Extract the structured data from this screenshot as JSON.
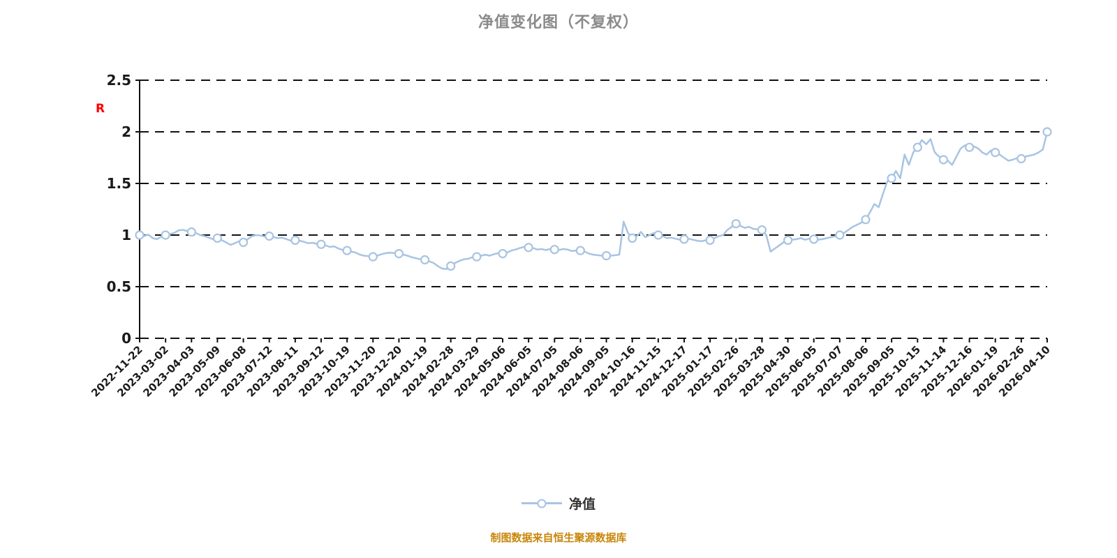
{
  "title": "净值变化图（不复权）",
  "watermark_r": "R",
  "legend": {
    "label": "净值"
  },
  "footer": {
    "source_note": "制图数据来自恒生聚源数据库"
  },
  "colors": {
    "line": "#a8c4e2",
    "marker_fill": "#ffffff",
    "grid": "#111111",
    "axis_text": "#1a1a1a",
    "title": "#8a8a8a",
    "footer": "#c8860a",
    "watermark": "#ff0000"
  },
  "chart_data": {
    "type": "line",
    "title": "净值变化图（不复权）",
    "xlabel": "",
    "ylabel": "",
    "series_name": "净值",
    "legend_position": "bottom-center",
    "grid": "dashed-horizontal",
    "ylim": [
      0,
      2.5
    ],
    "yticks": [
      0,
      0.5,
      1,
      1.5,
      2,
      2.5
    ],
    "x_tick_labels": [
      "2022-11-22",
      "2023-03-02",
      "2023-04-03",
      "2023-05-09",
      "2023-06-08",
      "2023-07-12",
      "2023-08-11",
      "2023-09-12",
      "2023-10-19",
      "2023-11-20",
      "2023-12-20",
      "2024-01-19",
      "2024-02-28",
      "2024-03-29",
      "2024-05-06",
      "2024-06-05",
      "2024-07-05",
      "2024-08-06",
      "2024-09-05",
      "2024-10-16",
      "2024-11-15",
      "2024-12-17",
      "2025-01-17",
      "2025-02-26",
      "2025-03-28",
      "2025-04-30",
      "2025-06-05",
      "2025-07-07",
      "2025-08-06",
      "2025-09-05",
      "2025-10-15",
      "2025-11-14",
      "2025-12-16",
      "2026-01-19",
      "2026-02-26",
      "2026-04-10"
    ],
    "points_per_tick": 6,
    "marker_every": 6,
    "values": [
      1.0,
      0.99,
      1.005,
      0.97,
      0.96,
      0.985,
      1.0,
      1.01,
      1.02,
      1.045,
      1.05,
      1.04,
      1.03,
      1.02,
      1.0,
      0.99,
      0.975,
      0.96,
      0.97,
      0.95,
      0.93,
      0.905,
      0.92,
      0.94,
      0.93,
      0.96,
      0.99,
      1.0,
      0.995,
      0.985,
      0.99,
      0.98,
      0.97,
      0.975,
      0.96,
      0.945,
      0.95,
      0.945,
      0.935,
      0.92,
      0.925,
      0.915,
      0.91,
      0.9,
      0.885,
      0.89,
      0.87,
      0.855,
      0.85,
      0.84,
      0.83,
      0.81,
      0.8,
      0.795,
      0.79,
      0.8,
      0.815,
      0.825,
      0.83,
      0.825,
      0.82,
      0.81,
      0.8,
      0.785,
      0.775,
      0.765,
      0.76,
      0.745,
      0.73,
      0.7,
      0.675,
      0.67,
      0.7,
      0.73,
      0.75,
      0.765,
      0.77,
      0.785,
      0.79,
      0.8,
      0.81,
      0.8,
      0.815,
      0.825,
      0.82,
      0.83,
      0.85,
      0.86,
      0.875,
      0.885,
      0.88,
      0.875,
      0.86,
      0.865,
      0.855,
      0.865,
      0.86,
      0.855,
      0.865,
      0.86,
      0.845,
      0.85,
      0.85,
      0.84,
      0.82,
      0.81,
      0.805,
      0.8,
      0.8,
      0.8,
      0.805,
      0.81,
      1.13,
      1.02,
      0.97,
      0.99,
      1.03,
      0.98,
      1.0,
      1.02,
      1.0,
      0.99,
      0.97,
      0.975,
      0.965,
      0.955,
      0.96,
      0.965,
      0.955,
      0.945,
      0.94,
      0.95,
      0.95,
      0.97,
      0.99,
      1.0,
      1.05,
      1.08,
      1.11,
      1.09,
      1.07,
      1.08,
      1.06,
      1.055,
      1.05,
      1.0,
      0.84,
      0.87,
      0.9,
      0.93,
      0.95,
      0.955,
      0.96,
      0.97,
      0.955,
      0.965,
      0.96,
      0.955,
      0.96,
      0.97,
      0.98,
      0.99,
      1.0,
      1.02,
      1.05,
      1.08,
      1.1,
      1.12,
      1.15,
      1.22,
      1.3,
      1.27,
      1.4,
      1.52,
      1.55,
      1.62,
      1.55,
      1.78,
      1.68,
      1.8,
      1.85,
      1.92,
      1.88,
      1.93,
      1.8,
      1.76,
      1.73,
      1.72,
      1.68,
      1.76,
      1.84,
      1.87,
      1.85,
      1.86,
      1.84,
      1.8,
      1.78,
      1.82,
      1.8,
      1.78,
      1.75,
      1.72,
      1.73,
      1.745,
      1.74,
      1.76,
      1.77,
      1.78,
      1.8,
      1.83,
      2.0
    ]
  }
}
